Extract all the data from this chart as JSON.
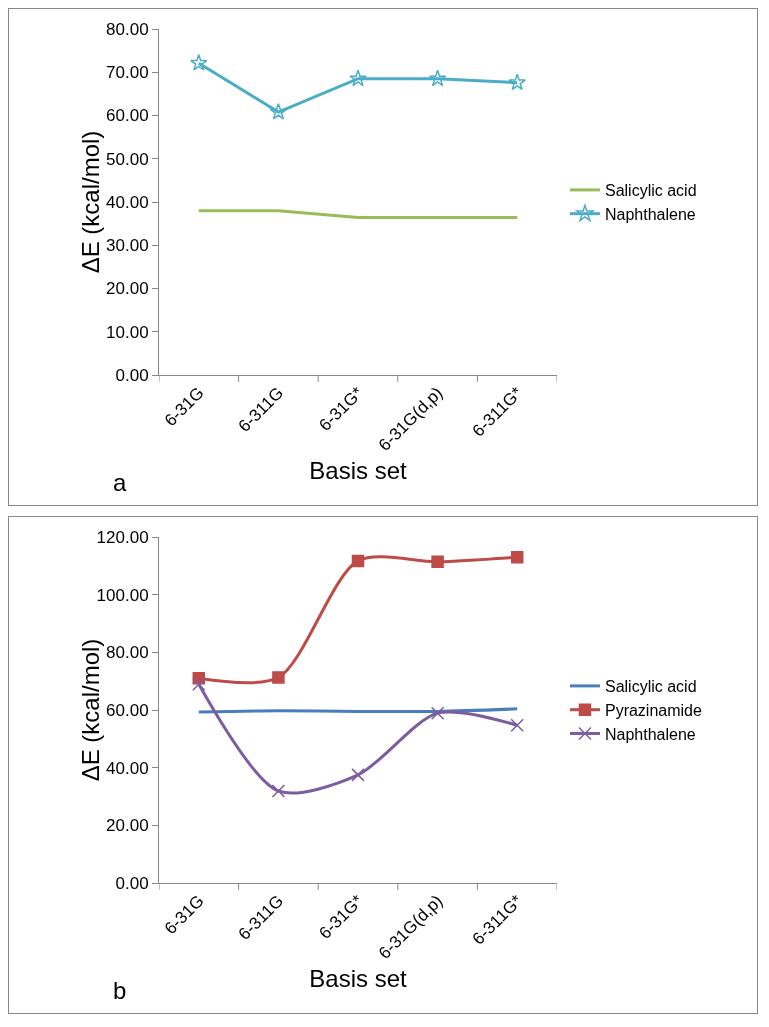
{
  "chart_data": [
    {
      "type": "line",
      "xlabel": "Basis set",
      "ylabel": "ΔE (kcal/mol)",
      "categories": [
        "6-31G",
        "6-311G",
        "6-31G*",
        "6-31G(d,p)",
        "6-311G*"
      ],
      "series": [
        {
          "name": "Salicylic acid",
          "color": "#9bbb59",
          "marker": "none",
          "values": [
            38.0,
            38.0,
            36.4,
            36.4,
            36.4
          ]
        },
        {
          "name": "Naphthalene",
          "color": "#4bacc6",
          "marker": "star",
          "values": [
            72.1,
            60.8,
            68.5,
            68.5,
            67.6
          ]
        }
      ],
      "ylim": [
        0,
        80
      ],
      "yticks": [
        {
          "value": 0,
          "label": "0.00"
        },
        {
          "value": 10,
          "label": "10.00"
        },
        {
          "value": 20,
          "label": "20.00"
        },
        {
          "value": 30,
          "label": "30.00"
        },
        {
          "value": 40,
          "label": "40.00"
        },
        {
          "value": 50,
          "label": "50.00"
        },
        {
          "value": 60,
          "label": "60.00"
        },
        {
          "value": 70,
          "label": "70.00"
        },
        {
          "value": 80,
          "label": "80.00"
        }
      ],
      "grid": false,
      "legend": "right",
      "annotations": [
        "a"
      ]
    },
    {
      "type": "line",
      "xlabel": "Basis set",
      "ylabel": "ΔE (kcal/mol)",
      "categories": [
        "6-31G",
        "6-311G",
        "6-31G*",
        "6-31G(d,p)",
        "6-311G*"
      ],
      "series": [
        {
          "name": "Salicylic acid",
          "color": "#4a7ebb",
          "marker": "none",
          "values": [
            59.3,
            59.7,
            59.5,
            59.5,
            60.4
          ]
        },
        {
          "name": "Pyrazinamide",
          "color": "#be4b48",
          "marker": "square",
          "values": [
            71.0,
            71.3,
            111.7,
            111.4,
            113.0
          ]
        },
        {
          "name": "Naphthalene",
          "color": "#7e5ca0",
          "marker": "cross",
          "values": [
            68.9,
            31.9,
            37.5,
            58.9,
            54.7
          ]
        }
      ],
      "ylim": [
        0,
        120
      ],
      "yticks": [
        {
          "value": 0,
          "label": "0.00"
        },
        {
          "value": 20,
          "label": "20.00"
        },
        {
          "value": 40,
          "label": "40.00"
        },
        {
          "value": 60,
          "label": "60.00"
        },
        {
          "value": 80,
          "label": "80.00"
        },
        {
          "value": 100,
          "label": "100.00"
        },
        {
          "value": 120,
          "label": "120.00"
        }
      ],
      "grid": false,
      "legend": "right",
      "annotations": [
        "b"
      ]
    }
  ]
}
